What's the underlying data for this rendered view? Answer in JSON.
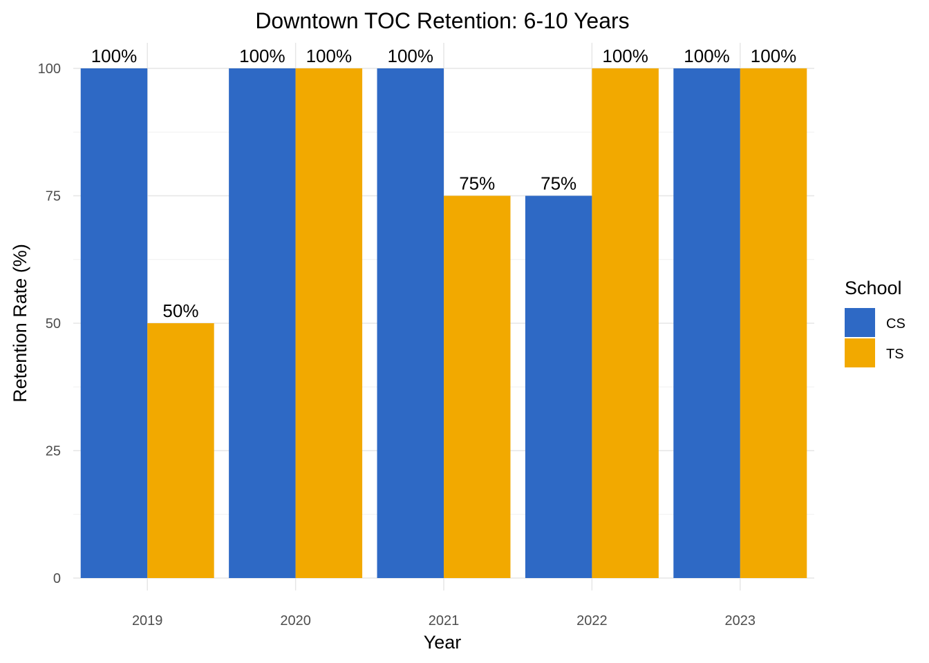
{
  "chart_data": {
    "type": "bar",
    "title": "Downtown TOC Retention: 6-10 Years",
    "xlabel": "Year",
    "ylabel": "Retention Rate (%)",
    "categories": [
      "2019",
      "2020",
      "2021",
      "2022",
      "2023"
    ],
    "series": [
      {
        "name": "CS",
        "color": "#2E69C5",
        "values": [
          100,
          100,
          100,
          75,
          100
        ],
        "labels": [
          "100%",
          "100%",
          "100%",
          "75%",
          "100%"
        ]
      },
      {
        "name": "TS",
        "color": "#F2A900",
        "values": [
          50,
          100,
          75,
          100,
          100
        ],
        "labels": [
          "50%",
          "100%",
          "75%",
          "100%",
          "100%"
        ]
      }
    ],
    "ylim": [
      0,
      100
    ],
    "yticks": [
      0,
      25,
      50,
      75,
      100
    ],
    "ytick_labels": [
      "0",
      "25",
      "50",
      "75",
      "100"
    ],
    "grid": true,
    "legend": {
      "title": "School",
      "placement": "right"
    }
  }
}
